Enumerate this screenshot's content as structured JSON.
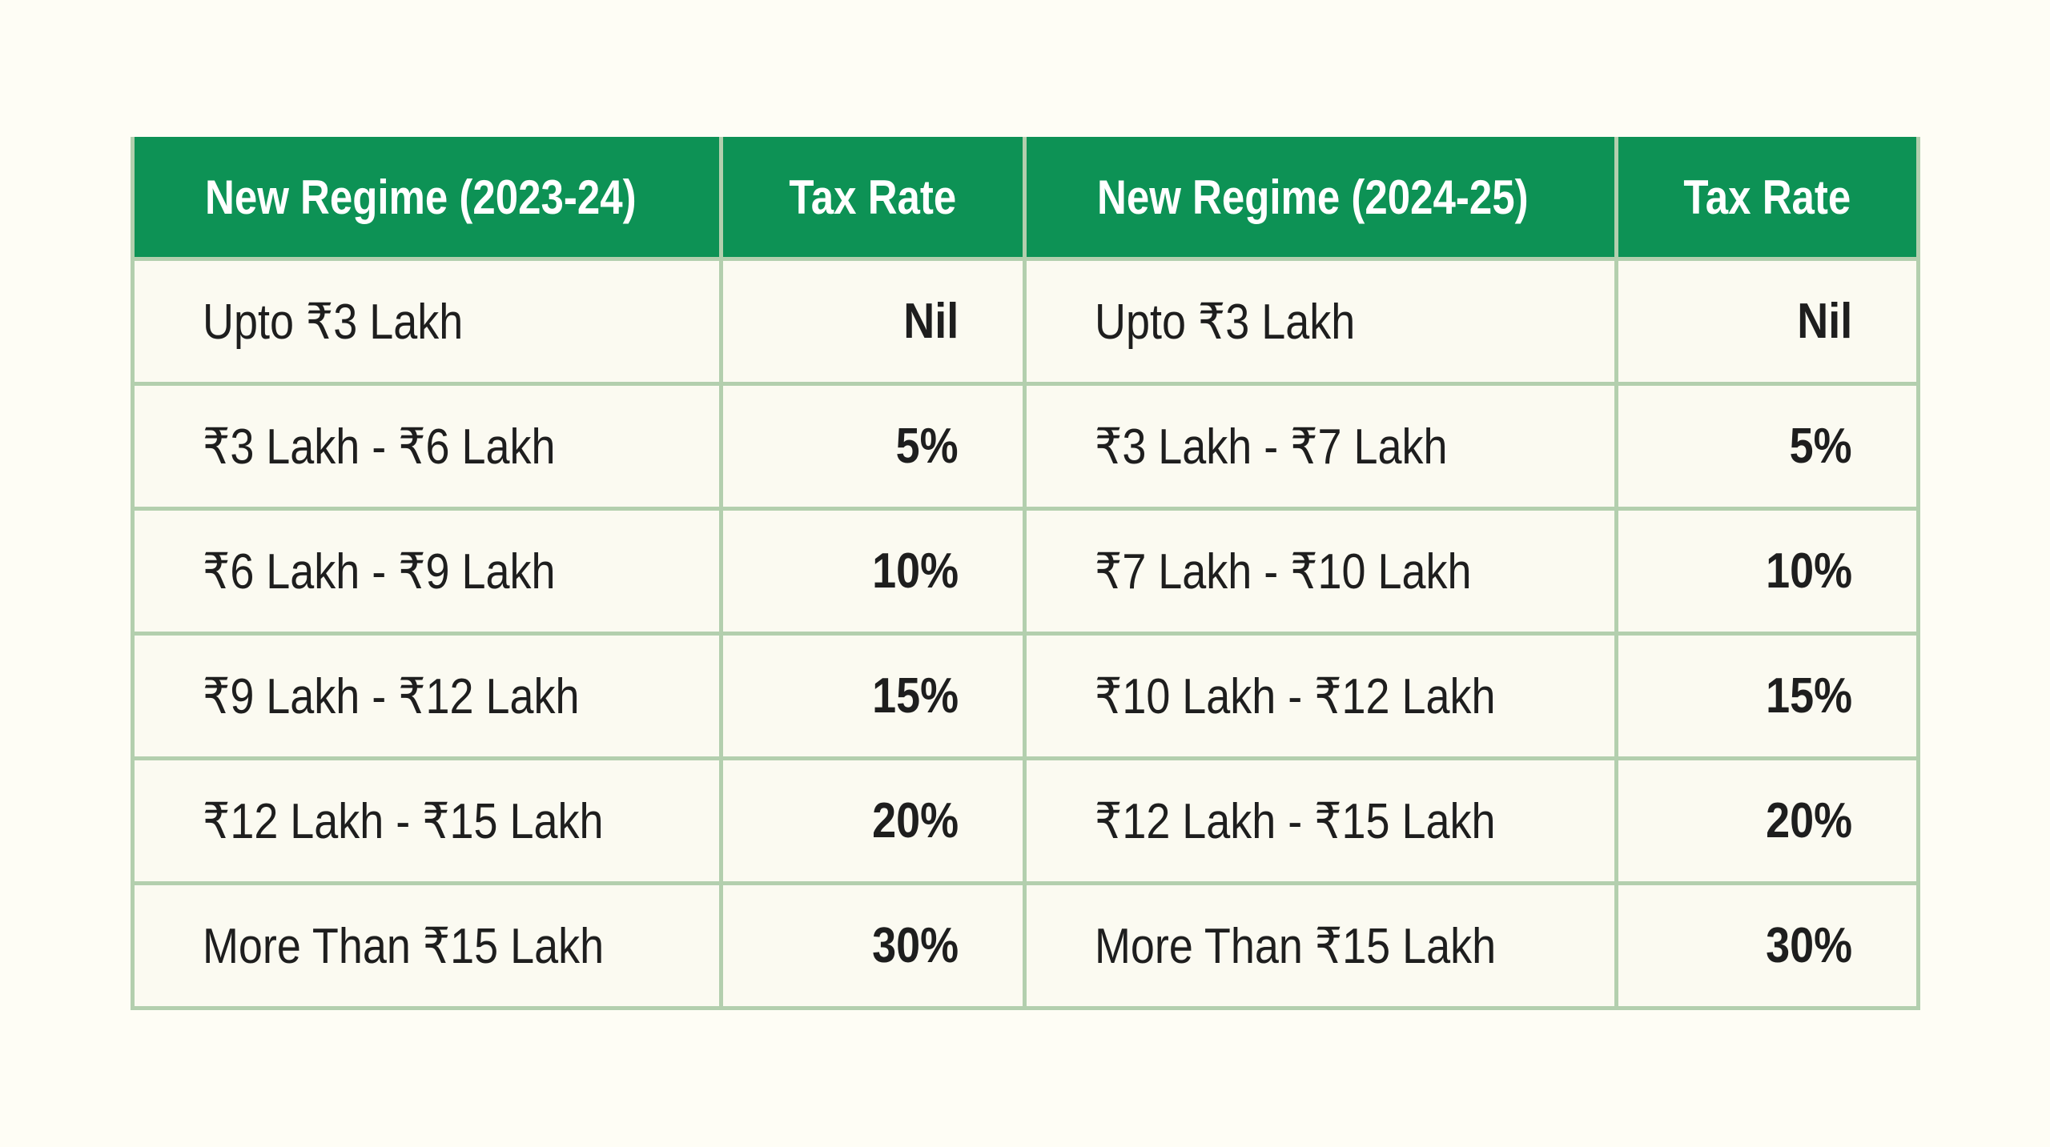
{
  "colors": {
    "page_bg": "#FEFDF5",
    "cell_bg": "#FBFAF1",
    "header_green": "#0D9255",
    "grid_green": "#B3CFAE",
    "text_dark": "#1E1E1E",
    "header_text": "#FFFFFF"
  },
  "chart_data": {
    "type": "table",
    "columns": [
      "New Regime (2023-24)",
      "Tax Rate",
      "New Regime (2024-25)",
      "Tax Rate"
    ],
    "rows": [
      [
        "Upto ₹3 Lakh",
        "Nil",
        "Upto ₹3 Lakh",
        "Nil"
      ],
      [
        "₹3 Lakh - ₹6 Lakh",
        "5%",
        "₹3 Lakh - ₹7 Lakh",
        "5%"
      ],
      [
        "₹6 Lakh - ₹9 Lakh",
        "10%",
        "₹7 Lakh - ₹10 Lakh",
        "10%"
      ],
      [
        "₹9 Lakh - ₹12 Lakh",
        "15%",
        "₹10 Lakh - ₹12 Lakh",
        "15%"
      ],
      [
        "₹12 Lakh - ₹15 Lakh",
        "20%",
        "₹12 Lakh - ₹15 Lakh",
        "20%"
      ],
      [
        "More Than ₹15 Lakh",
        "30%",
        "More Than ₹15 Lakh",
        "30%"
      ]
    ]
  }
}
